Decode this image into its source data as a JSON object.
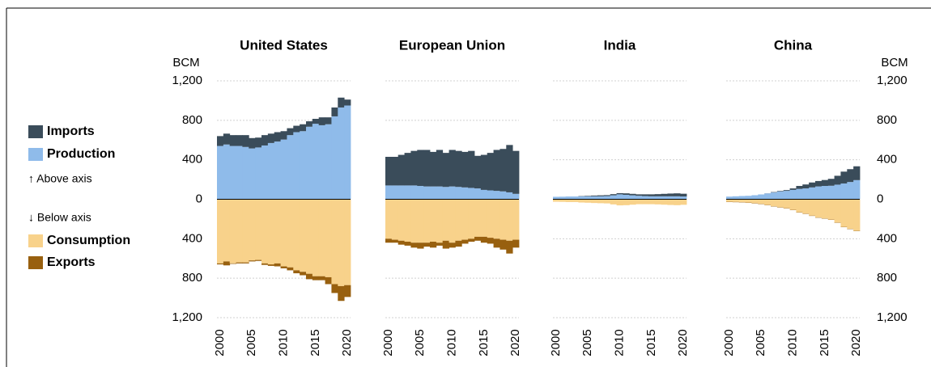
{
  "chart_data": {
    "type": "area",
    "y_label": "BCM",
    "x": [
      2000,
      2001,
      2002,
      2003,
      2004,
      2005,
      2006,
      2007,
      2008,
      2009,
      2010,
      2011,
      2012,
      2013,
      2014,
      2015,
      2016,
      2017,
      2018,
      2019,
      2020
    ],
    "xlim": [
      1999.5,
      2020.5
    ],
    "xticks": [
      2000,
      2005,
      2010,
      2015,
      2020
    ],
    "ylim": [
      -1200,
      1200
    ],
    "yticks": [
      {
        "value": -1200,
        "label": "1,200"
      },
      {
        "value": -800,
        "label": "800"
      },
      {
        "value": -400,
        "label": "400"
      },
      0,
      400,
      800,
      {
        "value": 1200,
        "label": "1,200"
      }
    ],
    "grid": true,
    "annotations": [
      "↑ Above axis",
      "↓ Below axis"
    ],
    "series": [
      {
        "name": "Imports",
        "color": "#3a4c5a"
      },
      {
        "name": "Production",
        "color": "#8fbbea"
      },
      {
        "name": "Consumption",
        "color": "#f8d28b"
      },
      {
        "name": "Exports",
        "color": "#98600f"
      }
    ],
    "panels": [
      {
        "title": "United States",
        "series": [
          {
            "values": [
              100,
              110,
              110,
              110,
              120,
              105,
              100,
              105,
              95,
              95,
              85,
              70,
              65,
              70,
              55,
              50,
              80,
              70,
              90,
              100,
              60
            ]
          },
          {
            "values": [
              540,
              555,
              540,
              540,
              530,
              515,
              525,
              545,
              570,
              585,
              605,
              650,
              680,
              690,
              735,
              765,
              750,
              760,
              840,
              930,
              950
            ]
          },
          {
            "values": [
              -650,
              -630,
              -650,
              -640,
              -640,
              -620,
              -615,
              -650,
              -660,
              -650,
              -680,
              -690,
              -720,
              -735,
              -755,
              -780,
              -780,
              -790,
              -860,
              -880,
              -870
            ]
          },
          {
            "values": [
              -10,
              -40,
              -5,
              -10,
              -10,
              -10,
              -10,
              -15,
              -15,
              -30,
              -20,
              -30,
              -30,
              -35,
              -55,
              -40,
              -40,
              -70,
              -90,
              -150,
              -120
            ]
          }
        ]
      },
      {
        "title": "European Union",
        "series": [
          {
            "values": [
              290,
              290,
              310,
              330,
              350,
              365,
              370,
              350,
              370,
              345,
              370,
              365,
              360,
              375,
              330,
              355,
              380,
              415,
              430,
              480,
              435
            ]
          },
          {
            "values": [
              140,
              140,
              140,
              140,
              140,
              135,
              130,
              130,
              130,
              125,
              130,
              125,
              120,
              115,
              110,
              95,
              90,
              85,
              80,
              70,
              55
            ]
          },
          {
            "values": [
              -400,
              -410,
              -420,
              -430,
              -440,
              -440,
              -440,
              -430,
              -440,
              -420,
              -440,
              -420,
              -410,
              -400,
              -380,
              -380,
              -390,
              -400,
              -410,
              -420,
              -410
            ]
          },
          {
            "values": [
              -40,
              -30,
              -40,
              -40,
              -50,
              -60,
              -40,
              -60,
              -30,
              -80,
              -50,
              -60,
              -40,
              -30,
              -40,
              -60,
              -60,
              -90,
              -100,
              -130,
              -80
            ]
          }
        ]
      },
      {
        "title": "India",
        "series": [
          {
            "values": [
              0,
              0,
              0,
              0,
              3,
              5,
              8,
              10,
              10,
              12,
              12,
              15,
              15,
              15,
              18,
              20,
              22,
              25,
              28,
              30,
              28
            ]
          },
          {
            "values": [
              25,
              26,
              28,
              28,
              30,
              30,
              30,
              30,
              32,
              40,
              50,
              45,
              40,
              35,
              32,
              30,
              30,
              30,
              30,
              30,
              28
            ]
          },
          {
            "values": [
              -25,
              -26,
              -28,
              -28,
              -33,
              -35,
              -38,
              -40,
              -42,
              -52,
              -62,
              -60,
              -55,
              -50,
              -50,
              -50,
              -52,
              -55,
              -58,
              -60,
              -56
            ]
          },
          {
            "values": [
              0,
              0,
              0,
              0,
              0,
              0,
              0,
              0,
              0,
              0,
              0,
              0,
              0,
              0,
              0,
              0,
              0,
              0,
              0,
              0,
              0
            ]
          }
        ]
      },
      {
        "title": "China",
        "series": [
          {
            "values": [
              0,
              0,
              0,
              0,
              0,
              0,
              1,
              4,
              5,
              8,
              15,
              30,
              40,
              50,
              55,
              60,
              70,
              90,
              120,
              130,
              140
            ]
          },
          {
            "values": [
              27,
              30,
              33,
              35,
              41,
              49,
              59,
              69,
              80,
              85,
              95,
              105,
              110,
              120,
              130,
              135,
              137,
              148,
              160,
              175,
              194
            ]
          },
          {
            "values": [
              -25,
              -27,
              -29,
              -34,
              -40,
              -47,
              -57,
              -71,
              -81,
              -90,
              -107,
              -131,
              -146,
              -166,
              -184,
              -194,
              -206,
              -236,
              -280,
              -300,
              -320
            ]
          },
          {
            "values": [
              -3,
              -3,
              -3,
              -3,
              -3,
              -3,
              -3,
              -3,
              -3,
              -3,
              -3,
              -3,
              -3,
              -3,
              -3,
              -3,
              -3,
              -3,
              -3,
              -3,
              -3
            ]
          }
        ]
      }
    ]
  }
}
